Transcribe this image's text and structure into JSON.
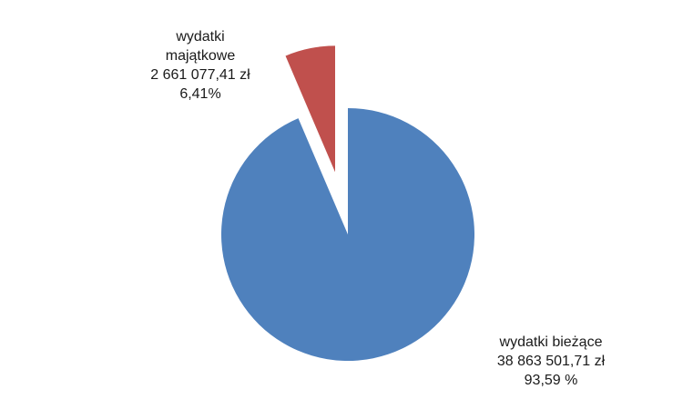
{
  "chart_data": {
    "type": "pie",
    "title": "",
    "exploded": [
      "wydatki majątkowe"
    ],
    "start": "12 o'clock, clockwise",
    "legend": "none",
    "slices": [
      {
        "name": "wydatki bieżące",
        "value": 38863501.71,
        "value_label": "38 863 501,71 zł",
        "percent": 93.59,
        "percent_label": "93,59 %",
        "color": "#4f81bd"
      },
      {
        "name": "wydatki majątkowe",
        "name_lines": [
          "wydatki",
          "majątkowe"
        ],
        "value": 2661077.41,
        "value_label": "2 661 077,41 zł",
        "percent": 6.41,
        "percent_label": "6,41%",
        "color": "#c0504d"
      }
    ]
  }
}
